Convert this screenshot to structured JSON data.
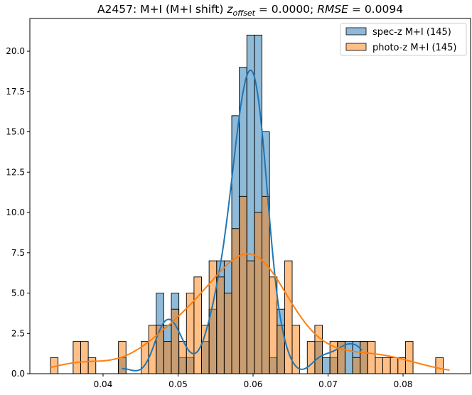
{
  "chart_data": {
    "type": "bar",
    "title": {
      "prefix": "A2457: M+I (M+I shift) ",
      "z_var": "z",
      "z_sub": "offset",
      "z_value": " = 0.0000; ",
      "rmse_var": "RMSE",
      "rmse_value": " = 0.0094"
    },
    "xlabel": "",
    "ylabel": "",
    "xlim": [
      0.03024,
      0.089
    ],
    "ylim": [
      0,
      22.03
    ],
    "xticks": [
      "0.04",
      "0.05",
      "0.06",
      "0.07",
      "0.08"
    ],
    "yticks": [
      "0.0",
      "2.5",
      "5.0",
      "7.5",
      "10.0",
      "12.5",
      "15.0",
      "17.5",
      "20.0"
    ],
    "bin_start": 0.03299,
    "bin_width": 0.001007,
    "legend_position": "top-right",
    "series": [
      {
        "name": "spec-z M+I (145)",
        "color": "#1f77b4",
        "fill": "#8fb8da",
        "kde_range": [
          0.0425,
          0.0745
        ],
        "counts": [
          0,
          0,
          0,
          0,
          0,
          0,
          0,
          0,
          0,
          1,
          0,
          0,
          0,
          0,
          5,
          3,
          5,
          1,
          1,
          0,
          2,
          4,
          7,
          7,
          16,
          19,
          21,
          21,
          15,
          1,
          4,
          0,
          0,
          0,
          0,
          2,
          1,
          1,
          2,
          2,
          2,
          2,
          0,
          0,
          0,
          0,
          0,
          0,
          0,
          0,
          0,
          0
        ]
      },
      {
        "name": "photo-z M+I (145)",
        "color": "#ff7f0e",
        "fill": "#ffbf86",
        "kde_range": [
          0.033,
          0.0862
        ],
        "counts": [
          1,
          0,
          0,
          2,
          2,
          1,
          0,
          0,
          0,
          2,
          0,
          0,
          2,
          3,
          3,
          2,
          4,
          2,
          5,
          6,
          3,
          7,
          6,
          5,
          9,
          11,
          7,
          10,
          11,
          6,
          3,
          7,
          3,
          0,
          2,
          3,
          0,
          2,
          2,
          0,
          1,
          2,
          2,
          1,
          1,
          1,
          1,
          2,
          0,
          0,
          0,
          1
        ]
      }
    ]
  }
}
